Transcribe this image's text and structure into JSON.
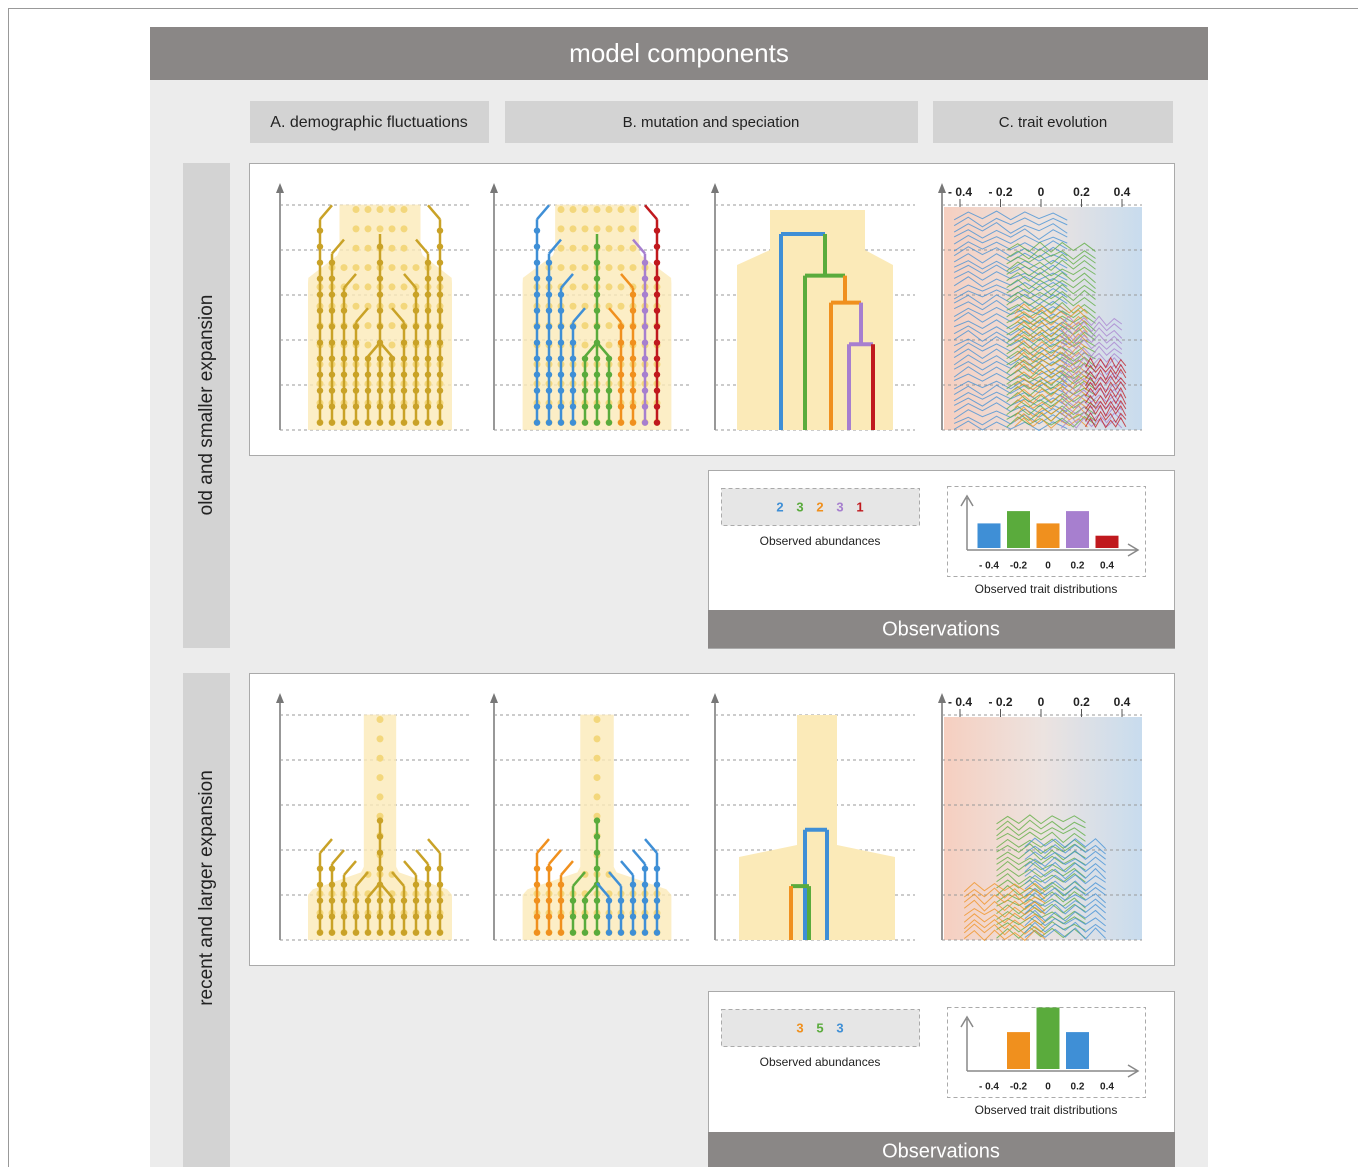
{
  "header": {
    "title": "model components"
  },
  "columns": [
    "A. demographic fluctuations",
    "B. mutation and speciation",
    "C. trait evolution"
  ],
  "rows": [
    {
      "label": "old and smaller expansion",
      "trait_ticks": [
        "- 0.4",
        "- 0.2",
        "0",
        "0.2",
        "0.4"
      ],
      "abundances": [
        {
          "value": 2,
          "color": "#3f8fd6"
        },
        {
          "value": 3,
          "color": "#5aab3c"
        },
        {
          "value": 2,
          "color": "#f0901e"
        },
        {
          "value": 3,
          "color": "#a77fcf"
        },
        {
          "value": 1,
          "color": "#c0191e"
        }
      ],
      "abundance_caption": "Observed abundances",
      "hist_ticks": [
        "- 0.4",
        "-0.2",
        "0",
        "0.2",
        "0.4"
      ],
      "hist_caption": "Observed trait distributions",
      "observations": "Observations"
    },
    {
      "label": "recent and larger expansion",
      "trait_ticks": [
        "- 0.4",
        "- 0.2",
        "0",
        "0.2",
        "0.4"
      ],
      "abundances": [
        {
          "value": 3,
          "color": "#f0901e"
        },
        {
          "value": 5,
          "color": "#5aab3c"
        },
        {
          "value": 3,
          "color": "#3f8fd6"
        }
      ],
      "abundance_caption": "Observed abundances",
      "hist_ticks": [
        "- 0.4",
        "-0.2",
        "0",
        "0.2",
        "0.4"
      ],
      "hist_caption": "Observed trait distributions",
      "observations": "Observations"
    }
  ]
}
